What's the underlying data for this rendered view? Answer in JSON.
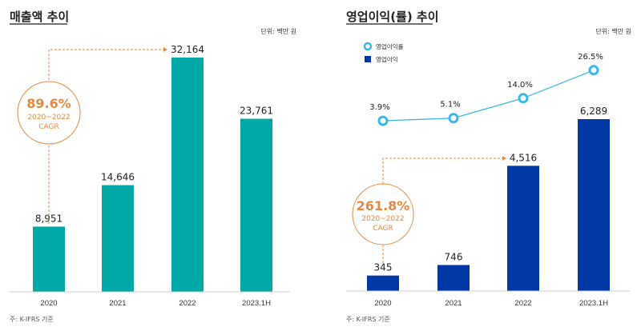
{
  "chart_data": [
    {
      "type": "bar",
      "title": "매출액 추이",
      "unit": "단위: 백만 원",
      "categories": [
        "2020",
        "2021",
        "2022",
        "2023.1H"
      ],
      "values": [
        8951,
        14646,
        32164,
        23761
      ],
      "value_labels": [
        "8,951",
        "14,646",
        "32,164",
        "23,761"
      ],
      "bar_color": "#00a9a5",
      "annotation": {
        "value": "89.6%",
        "period": "2020~2022",
        "label": "CAGR",
        "color": "#e8893f"
      },
      "note": "주: K-IFRS 기준"
    },
    {
      "type": "bar+line",
      "title": "영업이익(률) 추이",
      "unit": "단위: 백만 원",
      "categories": [
        "2020",
        "2021",
        "2022",
        "2023.1H"
      ],
      "legend": [
        "영업이익률",
        "영업이익"
      ],
      "legend_placement": "top-left",
      "series": [
        {
          "name": "영업이익",
          "type": "bar",
          "values": [
            345,
            746,
            4516,
            6289
          ],
          "value_labels": [
            "345",
            "746",
            "4,516",
            "6,289"
          ],
          "color": "#0039a6"
        },
        {
          "name": "영업이익률",
          "type": "line",
          "values": [
            3.9,
            5.1,
            14.0,
            26.5
          ],
          "value_labels": [
            "3.9%",
            "5.1%",
            "14.0%",
            "26.5%"
          ],
          "color": "#3bb8e8"
        }
      ],
      "annotation": {
        "value": "261.8%",
        "period": "2020~2022",
        "label": "CAGR",
        "color": "#e8893f"
      },
      "note": "주: K-IFRS 기준"
    }
  ]
}
